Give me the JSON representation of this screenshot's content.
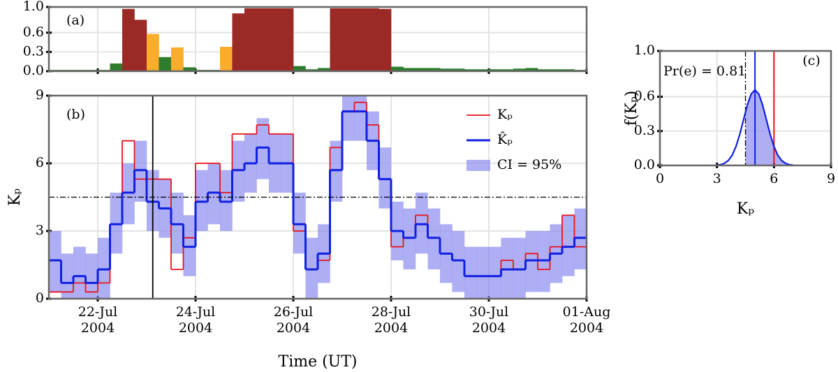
{
  "chart_data": [
    {
      "type": "bar",
      "label": "(a)",
      "x": [
        0,
        0.25,
        0.5,
        0.75,
        1,
        1.25,
        1.5,
        1.75,
        2,
        2.25,
        2.5,
        2.75,
        3,
        3.25,
        3.5,
        3.75,
        4,
        4.25,
        4.5,
        4.75,
        5,
        5.25,
        5.5,
        5.75,
        6,
        6.25,
        6.5,
        6.75,
        7,
        7.25,
        7.5,
        7.75,
        8,
        8.25,
        8.5,
        8.75,
        9,
        9.25,
        9.5,
        9.75,
        10,
        10.25,
        10.5,
        10.75
      ],
      "values": [
        0.02,
        0.02,
        0.02,
        0.02,
        0.02,
        0.12,
        0.97,
        0.8,
        0.58,
        0.22,
        0.37,
        0.06,
        0.02,
        0.02,
        0.38,
        0.9,
        0.98,
        0.98,
        0.98,
        0.98,
        0.08,
        0.03,
        0.05,
        0.98,
        0.98,
        0.98,
        0.98,
        0.97,
        0.07,
        0.05,
        0.05,
        0.05,
        0.04,
        0.04,
        0.03,
        0.03,
        0.03,
        0.03,
        0.04,
        0.05,
        0.03,
        0.03,
        0.03,
        0.02
      ],
      "colors": [
        "#2e7d2e",
        "#2e7d2e",
        "#2e7d2e",
        "#2e7d2e",
        "#2e7d2e",
        "#2e7d2e",
        "#9b2a26",
        "#9b2a26",
        "#f9ad2a",
        "#2e7d2e",
        "#f9ad2a",
        "#2e7d2e",
        "#2e7d2e",
        "#2e7d2e",
        "#f9ad2a",
        "#9b2a26",
        "#9b2a26",
        "#9b2a26",
        "#9b2a26",
        "#9b2a26",
        "#2e7d2e",
        "#2e7d2e",
        "#2e7d2e",
        "#9b2a26",
        "#9b2a26",
        "#9b2a26",
        "#9b2a26",
        "#9b2a26",
        "#2e7d2e",
        "#2e7d2e",
        "#2e7d2e",
        "#2e7d2e",
        "#2e7d2e",
        "#2e7d2e",
        "#2e7d2e",
        "#2e7d2e",
        "#2e7d2e",
        "#2e7d2e",
        "#2e7d2e",
        "#2e7d2e",
        "#2e7d2e",
        "#2e7d2e",
        "#2e7d2e",
        "#2e7d2e"
      ],
      "xlim": [
        0,
        11
      ],
      "xticks": [
        1,
        3,
        5,
        7,
        9,
        11
      ],
      "ylim": [
        0,
        1
      ],
      "yticks": [
        {
          "value": 0,
          "label": "0.0"
        },
        {
          "value": 0.3,
          "label": "0.3"
        },
        {
          "value": 0.6,
          "label": "0.6"
        },
        {
          "value": 1,
          "label": "1.0"
        }
      ],
      "grid": true
    },
    {
      "type": "step",
      "label": "(b)",
      "x_label": "Time (UT)",
      "y_label": "Kₚ",
      "x": [
        0,
        0.25,
        0.5,
        0.75,
        1,
        1.25,
        1.5,
        1.75,
        2,
        2.25,
        2.5,
        2.75,
        3,
        3.25,
        3.5,
        3.75,
        4,
        4.25,
        4.5,
        4.75,
        5,
        5.25,
        5.5,
        5.75,
        6,
        6.25,
        6.5,
        6.75,
        7,
        7.25,
        7.5,
        7.75,
        8,
        8.25,
        8.5,
        8.75,
        9,
        9.25,
        9.5,
        9.75,
        10,
        10.25,
        10.5,
        10.75
      ],
      "series": [
        {
          "name": "Kₚ",
          "color": "#e8121a",
          "values": [
            0.3,
            0.3,
            0.7,
            0.3,
            0.7,
            3.3,
            7.0,
            5.3,
            5.3,
            5.3,
            1.3,
            2.7,
            6.0,
            6.0,
            4.7,
            7.3,
            7.3,
            7.7,
            7.3,
            7.3,
            3.0,
            1.3,
            1.7,
            6.7,
            8.3,
            8.7,
            7.7,
            5.3,
            2.3,
            2.7,
            3.7,
            2.7,
            2.0,
            1.7,
            1.0,
            1.0,
            1.0,
            1.7,
            1.3,
            2.0,
            1.3,
            2.3,
            3.7,
            2.3
          ]
        },
        {
          "name": "K̂ₚ",
          "color": "#1020e0",
          "values": [
            1.7,
            0.7,
            1.0,
            0.7,
            1.3,
            3.3,
            4.7,
            5.7,
            4.3,
            4.0,
            3.3,
            2.3,
            4.3,
            4.7,
            4.3,
            5.7,
            6.0,
            6.7,
            6.0,
            6.0,
            3.3,
            1.3,
            2.0,
            5.7,
            8.3,
            8.3,
            7.0,
            5.3,
            3.0,
            2.7,
            3.3,
            2.7,
            2.0,
            1.7,
            1.0,
            1.0,
            1.0,
            1.3,
            1.3,
            1.7,
            1.7,
            2.0,
            2.3,
            2.7
          ]
        },
        {
          "name": "CI = 95%",
          "color": "#8c8cf0",
          "lower": [
            0.3,
            0,
            0,
            0,
            0,
            2.0,
            3.3,
            4.3,
            3.0,
            2.7,
            2.0,
            1.0,
            3.0,
            3.3,
            3.0,
            4.3,
            4.7,
            5.3,
            4.7,
            4.7,
            2.0,
            0,
            0.7,
            4.3,
            7.0,
            7.0,
            5.7,
            4.0,
            1.7,
            1.3,
            2.0,
            1.3,
            0.7,
            0.3,
            0,
            0,
            0,
            0,
            0,
            0.3,
            0.3,
            0.7,
            1.0,
            1.3
          ],
          "upper": [
            3.0,
            2.0,
            2.3,
            2.0,
            2.7,
            4.7,
            6.0,
            7.0,
            5.7,
            5.3,
            4.7,
            3.7,
            5.7,
            6.0,
            5.7,
            7.0,
            7.3,
            8.0,
            7.3,
            7.3,
            4.7,
            2.7,
            3.3,
            7.0,
            9.0,
            9.0,
            8.3,
            6.7,
            4.3,
            4.0,
            4.7,
            4.0,
            3.3,
            3.0,
            2.3,
            2.3,
            2.3,
            2.7,
            2.7,
            3.0,
            3.0,
            3.3,
            3.7,
            4.0
          ]
        }
      ],
      "threshold": 4.5,
      "marker_x": 2.125,
      "xlim": [
        0,
        11
      ],
      "xticks": [
        {
          "value": 1,
          "label": "22-Jul 2004"
        },
        {
          "value": 3,
          "label": "24-Jul 2004"
        },
        {
          "value": 5,
          "label": "26-Jul 2004"
        },
        {
          "value": 7,
          "label": "28-Jul 2004"
        },
        {
          "value": 9,
          "label": "30-Jul 2004"
        },
        {
          "value": 11,
          "label": "01-Aug 2004"
        }
      ],
      "ylim": [
        0,
        9
      ],
      "yticks": [
        0,
        3,
        6,
        9
      ],
      "grid": true
    },
    {
      "type": "density",
      "label": "(c)",
      "x_label": "Kₚ",
      "y_label": "f(Kₚ)",
      "annotation": "Pr(e) = 0.81",
      "x": [
        3.0,
        3.2,
        3.4,
        3.6,
        3.8,
        4.0,
        4.2,
        4.4,
        4.6,
        4.8,
        5.0,
        5.2,
        5.4,
        5.6,
        5.8,
        6.0,
        6.2,
        6.4,
        6.6,
        6.8,
        7.0
      ],
      "values": [
        0.003,
        0.007,
        0.019,
        0.043,
        0.089,
        0.165,
        0.271,
        0.4,
        0.528,
        0.624,
        0.66,
        0.624,
        0.528,
        0.4,
        0.271,
        0.165,
        0.089,
        0.043,
        0.019,
        0.007,
        0.003
      ],
      "color": "#1020e0",
      "observed": 6,
      "observed_color": "#e8121a",
      "predicted": 5.0,
      "threshold": 4.5,
      "xlim": [
        0,
        9
      ],
      "xticks": [
        0,
        3,
        6,
        9
      ],
      "ylim": [
        0,
        1
      ],
      "yticks": [
        {
          "value": 0,
          "label": "0.0"
        },
        {
          "value": 0.3,
          "label": "0.3"
        },
        {
          "value": 0.6,
          "label": "0.6"
        },
        {
          "value": 1,
          "label": "1.0"
        }
      ],
      "grid": true
    }
  ]
}
